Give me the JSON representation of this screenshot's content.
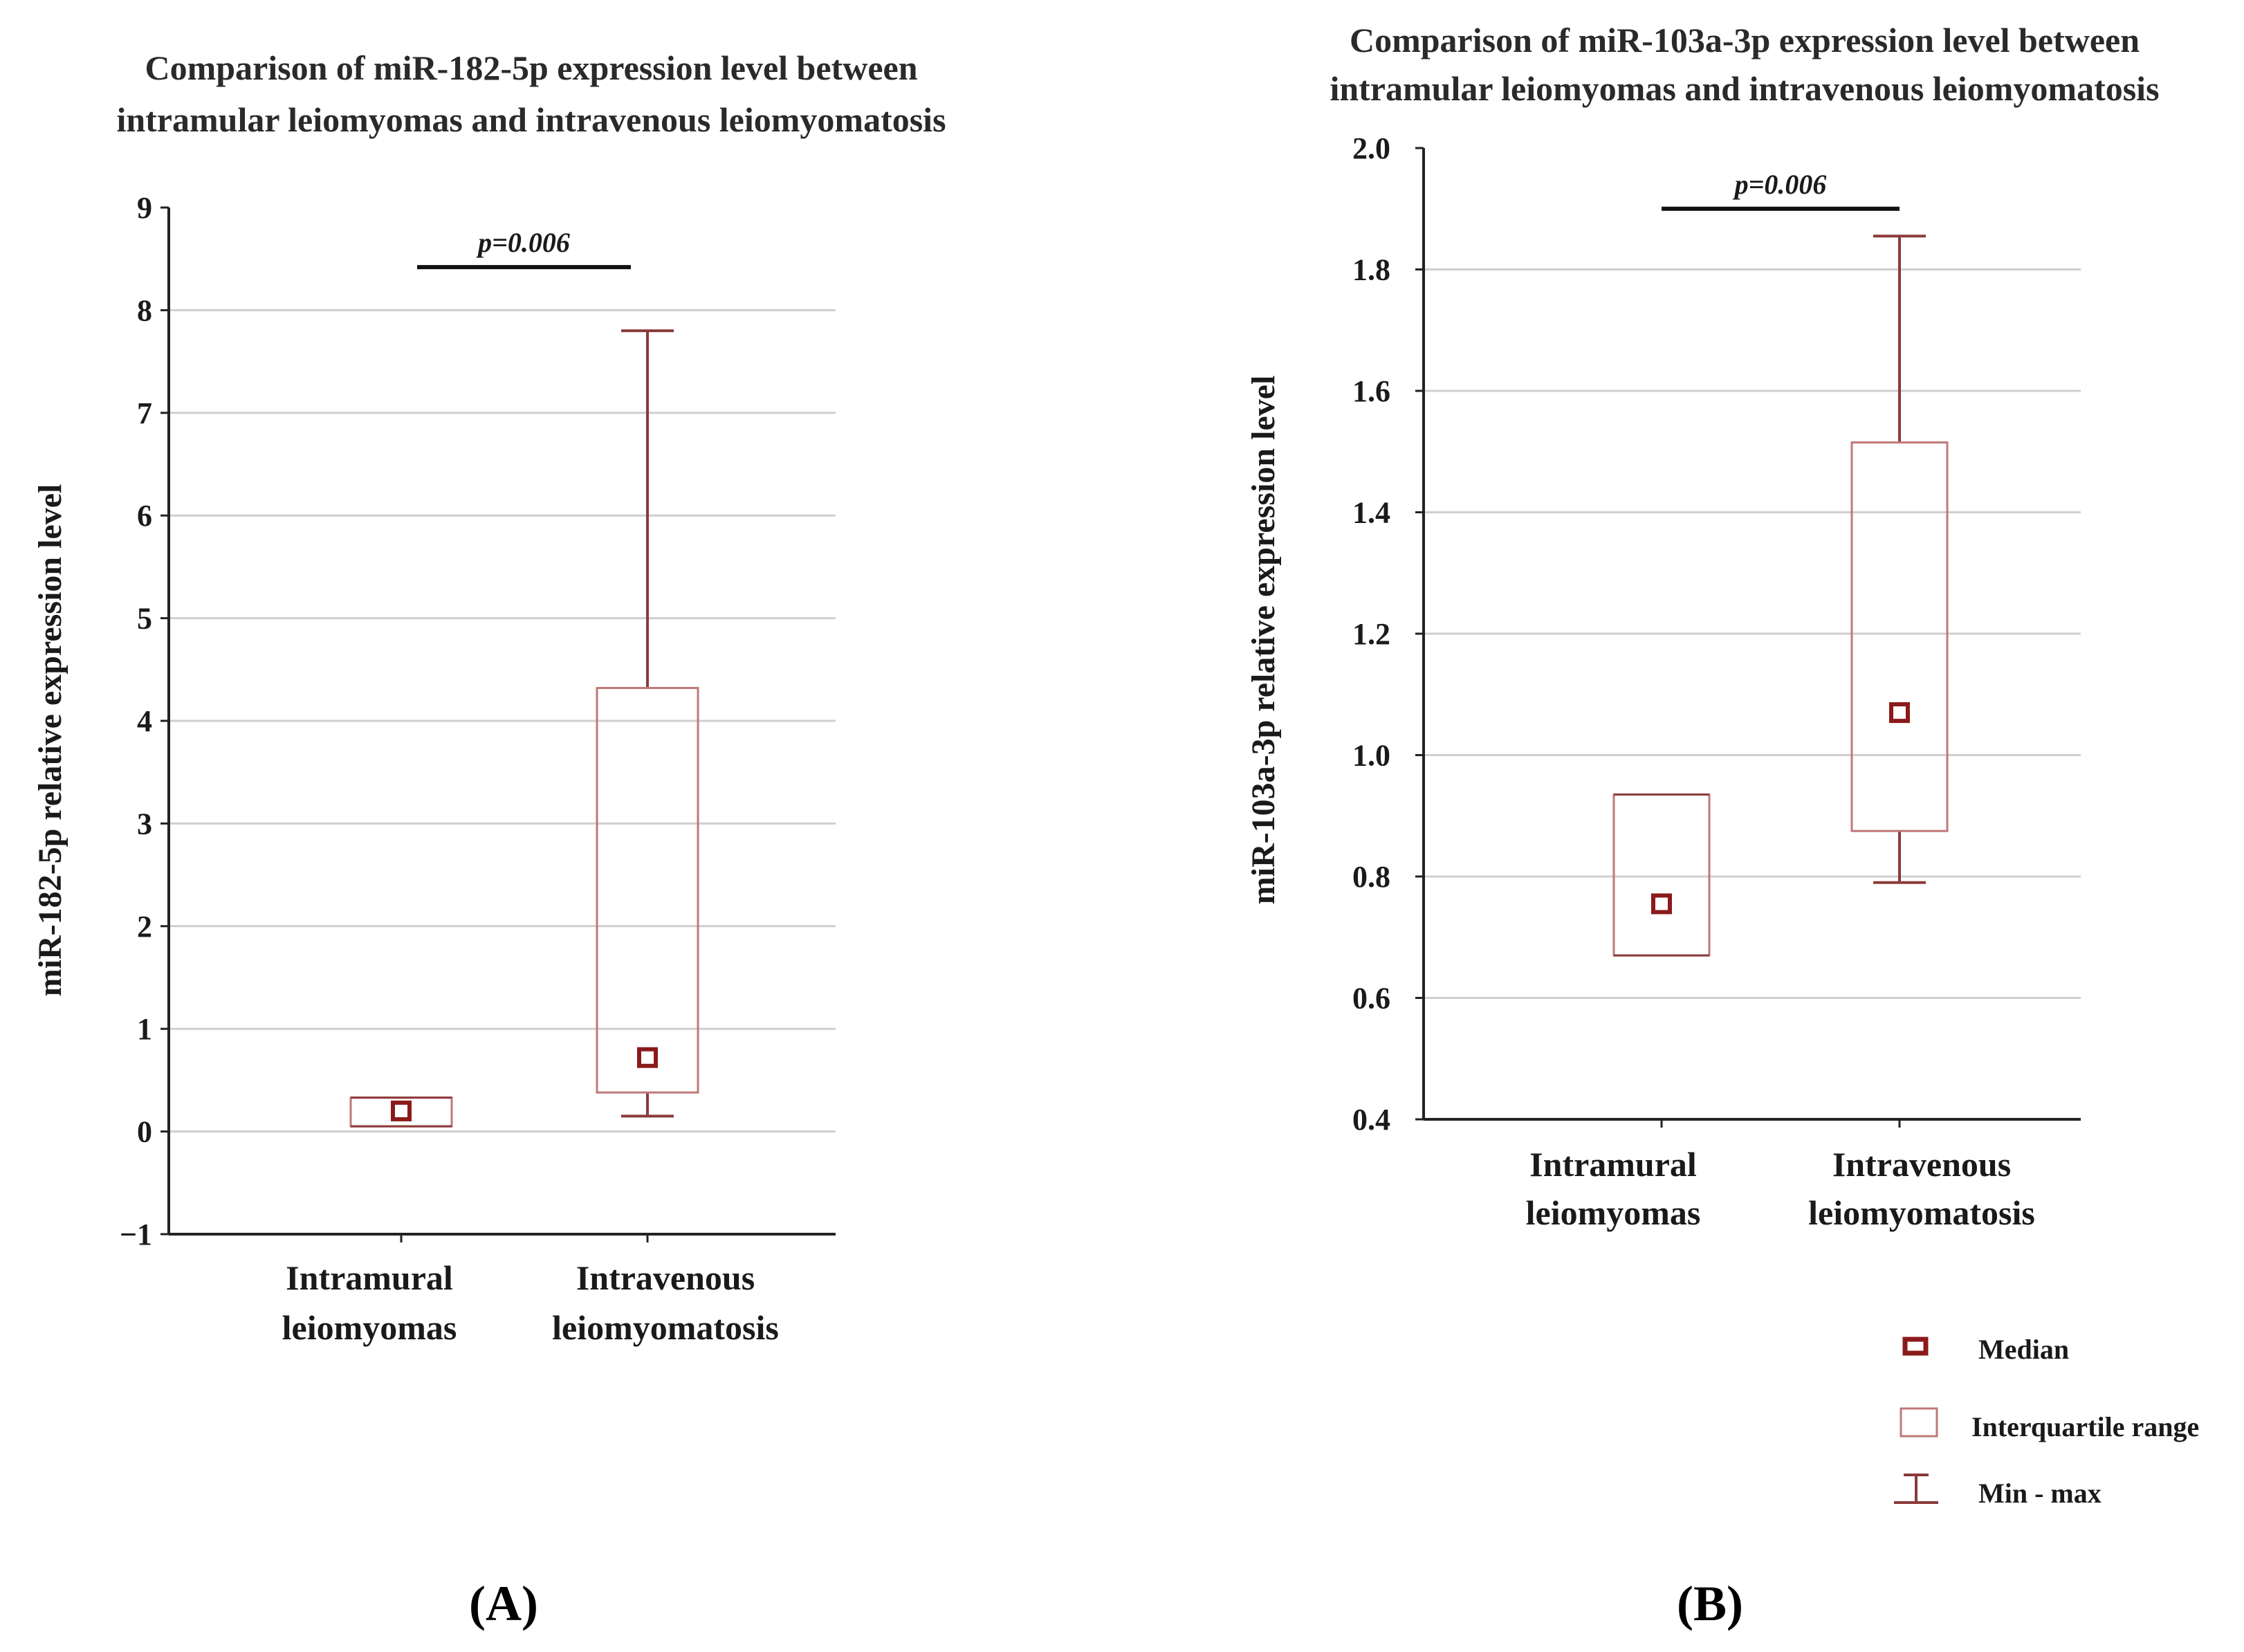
{
  "colors": {
    "median": "#8b1a1a",
    "box": "#c07878",
    "whisker": "#8b3a3a",
    "grid": "#cfcfcf",
    "axis": "#222222"
  },
  "legend": {
    "median": "Median",
    "iqr": "Interquartile range",
    "minmax": "Min - max"
  },
  "chart_data": [
    {
      "type": "box",
      "panel_label": "(A)",
      "title_line1": "Comparison of miR-182-5p expression level between",
      "title_line2": "intramular leiomyomas and intravenous leiomyomatosis",
      "ylabel": "miR-182-5p relative expression level",
      "ylim": [
        -1,
        9
      ],
      "yticks": [
        "−1",
        "0",
        "1",
        "2",
        "3",
        "4",
        "5",
        "6",
        "7",
        "8",
        "9"
      ],
      "grid": true,
      "categories": [
        {
          "line1": "Intramural",
          "line2": "leiomyomas"
        },
        {
          "line1": "Intravenous",
          "line2": "leiomyomatosis"
        }
      ],
      "boxes": [
        {
          "min": 0.05,
          "q1": 0.05,
          "median": 0.2,
          "q3": 0.33,
          "max": 0.33
        },
        {
          "min": 0.15,
          "q1": 0.38,
          "median": 0.72,
          "q3": 4.32,
          "max": 7.8
        }
      ],
      "significance": {
        "text": "p=0.006",
        "y": 8.42
      }
    },
    {
      "type": "box",
      "panel_label": "(B)",
      "title_line1": "Comparison of miR-103a-3p expression level between",
      "title_line2": "intramular leiomyomas and intravenous leiomyomatosis",
      "ylabel": "miR-103a-3p relative expression level",
      "ylim": [
        0.4,
        2.0
      ],
      "yticks": [
        "0.4",
        "0.6",
        "0.8",
        "1.0",
        "1.2",
        "1.4",
        "1.6",
        "1.8",
        "2.0"
      ],
      "grid": true,
      "categories": [
        {
          "line1": "Intramural",
          "line2": "leiomyomas"
        },
        {
          "line1": "Intravenous",
          "line2": "leiomyomatosis"
        }
      ],
      "boxes": [
        {
          "min": 0.67,
          "q1": 0.67,
          "median": 0.755,
          "q3": 0.935,
          "max": 0.935
        },
        {
          "min": 0.79,
          "q1": 0.875,
          "median": 1.07,
          "q3": 1.515,
          "max": 1.855
        }
      ],
      "significance": {
        "text": "p=0.006",
        "y": 1.9
      }
    }
  ]
}
